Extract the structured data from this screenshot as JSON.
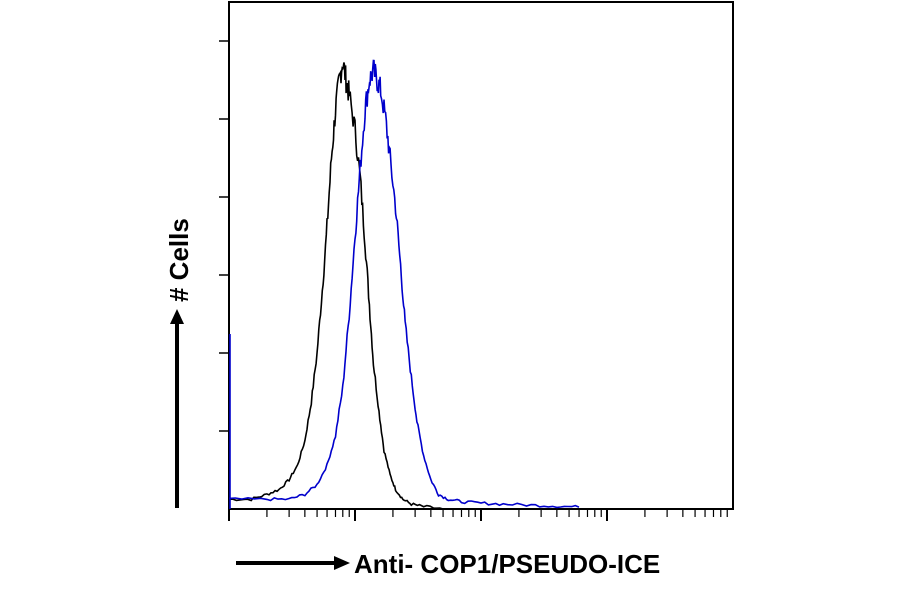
{
  "chart_data": {
    "type": "line",
    "title": "",
    "xlabel": "Anti- COP1/PSEUDO-ICE",
    "ylabel": "# Cells",
    "x_scale": "log",
    "xlim": [
      1,
      10000
    ],
    "ylim": [
      0,
      100
    ],
    "grid": false,
    "legend": "none",
    "series": [
      {
        "color": "#000000",
        "points": [
          [
            1.0,
            2
          ],
          [
            1.5,
            2
          ],
          [
            2.0,
            3
          ],
          [
            2.5,
            4
          ],
          [
            3.0,
            6
          ],
          [
            3.5,
            9
          ],
          [
            4.0,
            14
          ],
          [
            4.5,
            22
          ],
          [
            5.0,
            32
          ],
          [
            5.5,
            45
          ],
          [
            6.0,
            58
          ],
          [
            6.5,
            72
          ],
          [
            7.0,
            82
          ],
          [
            7.5,
            88
          ],
          [
            8.0,
            92
          ],
          [
            8.5,
            88
          ],
          [
            9.0,
            85
          ],
          [
            10.0,
            78
          ],
          [
            11.0,
            68
          ],
          [
            12.0,
            55
          ],
          [
            13.0,
            42
          ],
          [
            14.0,
            30
          ],
          [
            15.5,
            20
          ],
          [
            17.0,
            12
          ],
          [
            19.0,
            7
          ],
          [
            21.0,
            4
          ],
          [
            24.0,
            2
          ],
          [
            28.0,
            1
          ],
          [
            35.0,
            0.5
          ],
          [
            50.0,
            0
          ]
        ]
      },
      {
        "color": "#0000cc",
        "points": [
          [
            1.0,
            2
          ],
          [
            2.0,
            2
          ],
          [
            3.0,
            2
          ],
          [
            4.0,
            3
          ],
          [
            5.0,
            5
          ],
          [
            6.0,
            9
          ],
          [
            7.0,
            15
          ],
          [
            8.0,
            25
          ],
          [
            9.0,
            40
          ],
          [
            10.0,
            56
          ],
          [
            11.0,
            70
          ],
          [
            12.0,
            82
          ],
          [
            13.0,
            88
          ],
          [
            14.0,
            90
          ],
          [
            15.0,
            88
          ],
          [
            16.0,
            86
          ],
          [
            17.5,
            80
          ],
          [
            19.0,
            72
          ],
          [
            21.0,
            62
          ],
          [
            23.0,
            50
          ],
          [
            25.0,
            38
          ],
          [
            28.0,
            27
          ],
          [
            31.0,
            18
          ],
          [
            35.0,
            11
          ],
          [
            40.0,
            6
          ],
          [
            46.0,
            3
          ],
          [
            55.0,
            2
          ],
          [
            70.0,
            1.5
          ],
          [
            100.0,
            1.2
          ],
          [
            150.0,
            1
          ],
          [
            250.0,
            0.8
          ],
          [
            400.0,
            0.6
          ],
          [
            600.0,
            0.4
          ]
        ]
      }
    ]
  }
}
